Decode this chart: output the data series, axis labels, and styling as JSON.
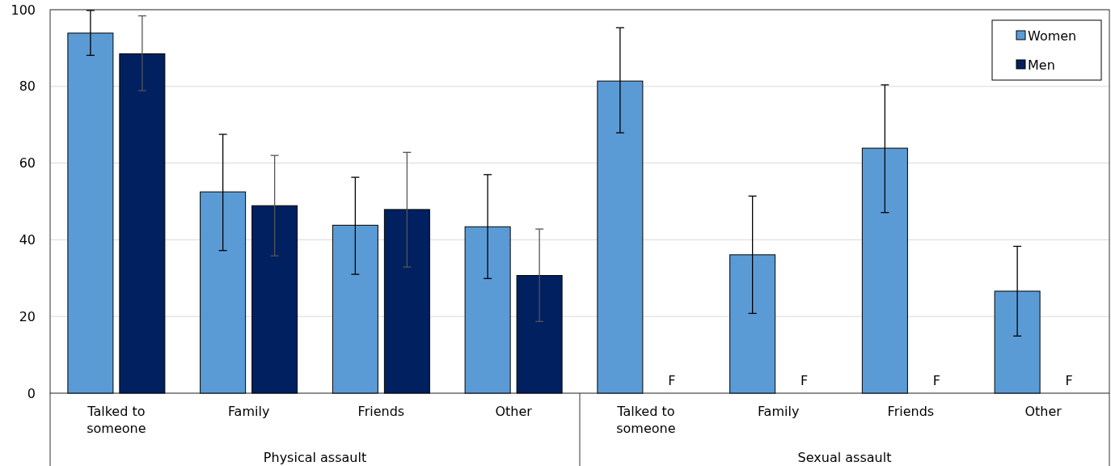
{
  "chart_data": {
    "type": "bar",
    "categories": [
      "Talked to someone",
      "Family",
      "Friends",
      "Other",
      "Talked to someone",
      "Family",
      "Friends",
      "Other"
    ],
    "series": [
      {
        "name": "Women",
        "color": "#5b9bd5",
        "values": [
          93.9,
          52.5,
          43.8,
          43.4,
          81.4,
          36.1,
          63.9,
          26.6
        ],
        "errors": [
          [
            88.1,
            99.8
          ],
          [
            37.2,
            67.5
          ],
          [
            31.0,
            56.3
          ],
          [
            29.9,
            57.0
          ],
          [
            67.9,
            95.3
          ],
          [
            20.8,
            51.4
          ],
          [
            47.1,
            80.4
          ],
          [
            14.9,
            38.3
          ]
        ]
      },
      {
        "name": "Men",
        "color": "#002060",
        "values": [
          88.5,
          48.9,
          47.9,
          30.7,
          null,
          null,
          null,
          null
        ],
        "errors": [
          [
            78.9,
            98.4
          ],
          [
            35.8,
            62.0
          ],
          [
            32.9,
            62.8
          ],
          [
            18.7,
            42.8
          ],
          null,
          null,
          null,
          null
        ],
        "value_labels": [
          null,
          null,
          null,
          null,
          "F",
          "F",
          "F",
          "F"
        ]
      }
    ],
    "annotations": [
      "Physical assault",
      "Sexual assault"
    ],
    "ylim": [
      0,
      100
    ],
    "yticks": [
      0,
      20,
      40,
      60,
      80,
      100
    ],
    "grid": "y",
    "legend": "top right"
  }
}
